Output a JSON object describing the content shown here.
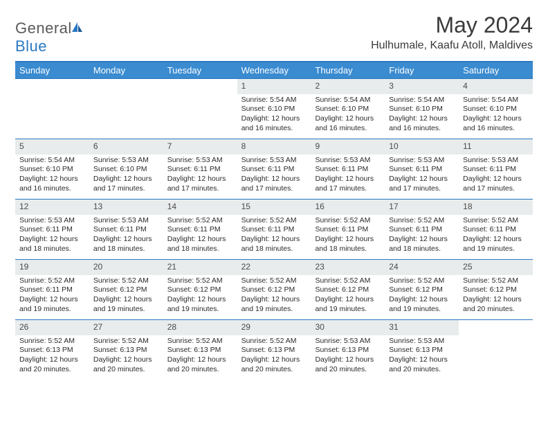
{
  "logo": {
    "word1": "General",
    "word2": "Blue"
  },
  "title": "May 2024",
  "location": "Hulhumale, Kaafu Atoll, Maldives",
  "colors": {
    "header_bg": "#3a8bd0",
    "header_text": "#ffffff",
    "border": "#2a78c2",
    "daynum_bg": "#e8eced",
    "text": "#2a2a2a",
    "logo_gray": "#5a5a5a",
    "logo_blue": "#2a78c2"
  },
  "weekdays": [
    "Sunday",
    "Monday",
    "Tuesday",
    "Wednesday",
    "Thursday",
    "Friday",
    "Saturday"
  ],
  "weeks": [
    [
      null,
      null,
      null,
      {
        "n": "1",
        "sr": "5:54 AM",
        "ss": "6:10 PM",
        "dl": "12 hours and 16 minutes."
      },
      {
        "n": "2",
        "sr": "5:54 AM",
        "ss": "6:10 PM",
        "dl": "12 hours and 16 minutes."
      },
      {
        "n": "3",
        "sr": "5:54 AM",
        "ss": "6:10 PM",
        "dl": "12 hours and 16 minutes."
      },
      {
        "n": "4",
        "sr": "5:54 AM",
        "ss": "6:10 PM",
        "dl": "12 hours and 16 minutes."
      }
    ],
    [
      {
        "n": "5",
        "sr": "5:54 AM",
        "ss": "6:10 PM",
        "dl": "12 hours and 16 minutes."
      },
      {
        "n": "6",
        "sr": "5:53 AM",
        "ss": "6:10 PM",
        "dl": "12 hours and 17 minutes."
      },
      {
        "n": "7",
        "sr": "5:53 AM",
        "ss": "6:11 PM",
        "dl": "12 hours and 17 minutes."
      },
      {
        "n": "8",
        "sr": "5:53 AM",
        "ss": "6:11 PM",
        "dl": "12 hours and 17 minutes."
      },
      {
        "n": "9",
        "sr": "5:53 AM",
        "ss": "6:11 PM",
        "dl": "12 hours and 17 minutes."
      },
      {
        "n": "10",
        "sr": "5:53 AM",
        "ss": "6:11 PM",
        "dl": "12 hours and 17 minutes."
      },
      {
        "n": "11",
        "sr": "5:53 AM",
        "ss": "6:11 PM",
        "dl": "12 hours and 17 minutes."
      }
    ],
    [
      {
        "n": "12",
        "sr": "5:53 AM",
        "ss": "6:11 PM",
        "dl": "12 hours and 18 minutes."
      },
      {
        "n": "13",
        "sr": "5:53 AM",
        "ss": "6:11 PM",
        "dl": "12 hours and 18 minutes."
      },
      {
        "n": "14",
        "sr": "5:52 AM",
        "ss": "6:11 PM",
        "dl": "12 hours and 18 minutes."
      },
      {
        "n": "15",
        "sr": "5:52 AM",
        "ss": "6:11 PM",
        "dl": "12 hours and 18 minutes."
      },
      {
        "n": "16",
        "sr": "5:52 AM",
        "ss": "6:11 PM",
        "dl": "12 hours and 18 minutes."
      },
      {
        "n": "17",
        "sr": "5:52 AM",
        "ss": "6:11 PM",
        "dl": "12 hours and 18 minutes."
      },
      {
        "n": "18",
        "sr": "5:52 AM",
        "ss": "6:11 PM",
        "dl": "12 hours and 19 minutes."
      }
    ],
    [
      {
        "n": "19",
        "sr": "5:52 AM",
        "ss": "6:11 PM",
        "dl": "12 hours and 19 minutes."
      },
      {
        "n": "20",
        "sr": "5:52 AM",
        "ss": "6:12 PM",
        "dl": "12 hours and 19 minutes."
      },
      {
        "n": "21",
        "sr": "5:52 AM",
        "ss": "6:12 PM",
        "dl": "12 hours and 19 minutes."
      },
      {
        "n": "22",
        "sr": "5:52 AM",
        "ss": "6:12 PM",
        "dl": "12 hours and 19 minutes."
      },
      {
        "n": "23",
        "sr": "5:52 AM",
        "ss": "6:12 PM",
        "dl": "12 hours and 19 minutes."
      },
      {
        "n": "24",
        "sr": "5:52 AM",
        "ss": "6:12 PM",
        "dl": "12 hours and 19 minutes."
      },
      {
        "n": "25",
        "sr": "5:52 AM",
        "ss": "6:12 PM",
        "dl": "12 hours and 20 minutes."
      }
    ],
    [
      {
        "n": "26",
        "sr": "5:52 AM",
        "ss": "6:13 PM",
        "dl": "12 hours and 20 minutes."
      },
      {
        "n": "27",
        "sr": "5:52 AM",
        "ss": "6:13 PM",
        "dl": "12 hours and 20 minutes."
      },
      {
        "n": "28",
        "sr": "5:52 AM",
        "ss": "6:13 PM",
        "dl": "12 hours and 20 minutes."
      },
      {
        "n": "29",
        "sr": "5:52 AM",
        "ss": "6:13 PM",
        "dl": "12 hours and 20 minutes."
      },
      {
        "n": "30",
        "sr": "5:53 AM",
        "ss": "6:13 PM",
        "dl": "12 hours and 20 minutes."
      },
      {
        "n": "31",
        "sr": "5:53 AM",
        "ss": "6:13 PM",
        "dl": "12 hours and 20 minutes."
      },
      null
    ]
  ],
  "labels": {
    "sunrise": "Sunrise:",
    "sunset": "Sunset:",
    "daylight": "Daylight:"
  }
}
